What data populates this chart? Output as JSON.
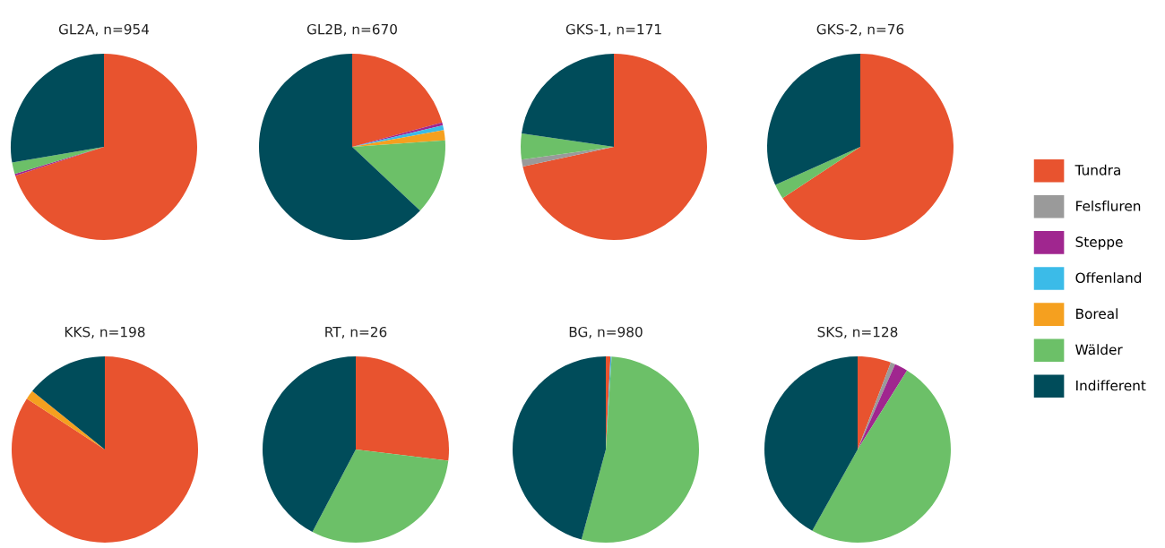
{
  "chart_data": [
    {
      "type": "pie",
      "title": "GL2A, n=954",
      "categories": [
        "Tundra",
        "Felsfluren",
        "Steppe",
        "Offenland",
        "Boreal",
        "Wälder",
        "Indifferent"
      ],
      "values": [
        70,
        0,
        0.3,
        0,
        0,
        2,
        27.7
      ],
      "colors": [
        "#e8532f",
        "#9a9a9a",
        "#a0268f",
        "#3bbbe8",
        "#f5a01f",
        "#6cc068",
        "#004c5a"
      ],
      "legend": "right"
    },
    {
      "type": "pie",
      "title": "GL2B, n=670",
      "categories": [
        null,
        null,
        null,
        null,
        null,
        null,
        null
      ],
      "values": [
        20.8,
        0,
        0.5,
        0.8,
        1.8,
        13.1,
        63
      ],
      "colors": [
        "#e8532f",
        "#9a9a9a",
        "#a0268f",
        "#3bbbe8",
        "#f5a01f",
        "#6cc068",
        "#004c5a"
      ]
    },
    {
      "type": "pie",
      "title": "GKS-1, n=171",
      "categories": [
        null,
        null,
        null,
        null,
        null,
        null,
        null
      ],
      "values": [
        71.6,
        1.2,
        0,
        0,
        0,
        4.5,
        22.7
      ],
      "colors": [
        "#e8532f",
        "#9a9a9a",
        "#a0268f",
        "#3bbbe8",
        "#f5a01f",
        "#6cc068",
        "#004c5a"
      ]
    },
    {
      "type": "pie",
      "title": "GKS-2, n=76",
      "categories": [
        null,
        null,
        null,
        null,
        null,
        null,
        null
      ],
      "values": [
        65.7,
        0,
        0,
        0,
        0,
        2.6,
        31.7
      ],
      "colors": [
        "#e8532f",
        "#9a9a9a",
        "#a0268f",
        "#3bbbe8",
        "#f5a01f",
        "#6cc068",
        "#004c5a"
      ]
    },
    {
      "type": "pie",
      "title": "KKS, n=198",
      "categories": [
        null,
        null,
        null,
        null,
        null,
        null,
        null
      ],
      "values": [
        84.2,
        0,
        0,
        0,
        1.6,
        0,
        14.2
      ],
      "colors": [
        "#e8532f",
        "#9a9a9a",
        "#a0268f",
        "#3bbbe8",
        "#f5a01f",
        "#6cc068",
        "#004c5a"
      ]
    },
    {
      "type": "pie",
      "title": "RT, n=26",
      "categories": [
        null,
        null,
        null,
        null,
        null,
        null,
        null
      ],
      "values": [
        26.9,
        0,
        0,
        0,
        0,
        30.8,
        42.3
      ],
      "colors": [
        "#e8532f",
        "#9a9a9a",
        "#a0268f",
        "#3bbbe8",
        "#f5a01f",
        "#6cc068",
        "#004c5a"
      ]
    },
    {
      "type": "pie",
      "title": "BG, n=980",
      "categories": [
        null,
        null,
        null,
        null,
        null,
        null,
        null
      ],
      "values": [
        0.8,
        0,
        0,
        0.2,
        0,
        53.2,
        45.8
      ],
      "colors": [
        "#e8532f",
        "#9a9a9a",
        "#a0268f",
        "#3bbbe8",
        "#f5a01f",
        "#6cc068",
        "#004c5a"
      ]
    },
    {
      "type": "pie",
      "title": "SKS, n=128",
      "categories": [
        null,
        null,
        null,
        null,
        null,
        null,
        null
      ],
      "values": [
        5.8,
        0.8,
        2.3,
        0,
        0,
        49.2,
        41.9
      ],
      "colors": [
        "#e8532f",
        "#9a9a9a",
        "#a0268f",
        "#3bbbe8",
        "#f5a01f",
        "#6cc068",
        "#004c5a"
      ]
    }
  ]
}
